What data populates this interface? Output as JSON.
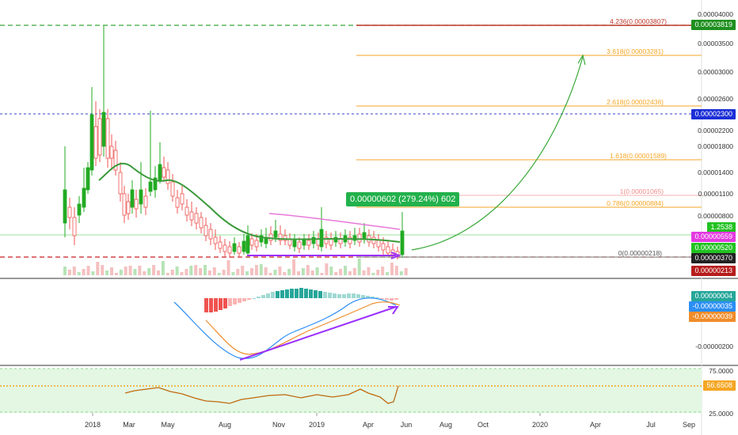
{
  "colors": {
    "up": "#22ab22",
    "down": "#ef5350",
    "fib_orange": "#f5a623",
    "fib_red": "#c0392b",
    "ma_green": "#3a9a3a",
    "ma_pink": "#e879d9",
    "macd_blue": "#2b8ff5",
    "macd_orange": "#f08c2a",
    "purple": "#9b30ff",
    "green_dash": "#36a836",
    "blue_dash": "#3344cc",
    "red_dash": "#cc2222"
  },
  "price_axis": [
    "0.00004000",
    "0.00003500",
    "0.00003000",
    "0.00002600",
    "0.00002200",
    "0.00001800",
    "0.00001400",
    "0.00001100",
    "0.00000800"
  ],
  "price_tags": [
    {
      "name": "tag-3819",
      "text": "0.00003819",
      "color": "#1e8f1e"
    },
    {
      "name": "tag-2300",
      "text": "0.00002300",
      "color": "#1c2fd6"
    },
    {
      "name": "tag-2538",
      "text": "1.2538",
      "color": "#21c221"
    },
    {
      "name": "tag-0559",
      "text": "0.00000559",
      "color": "#e33be0"
    },
    {
      "name": "tag-0520",
      "text": "0.00000520",
      "color": "#21c221"
    },
    {
      "name": "tag-0370",
      "text": "0.00000370",
      "color": "#222222"
    },
    {
      "name": "tag-0213",
      "text": "0.00000213",
      "color": "#b71c1c"
    }
  ],
  "fib_levels": [
    {
      "label": "4.236(0.00003807)",
      "color": "#c0392b"
    },
    {
      "label": "3.618(0.00003281)",
      "color": "#f5a623"
    },
    {
      "label": "2.618(0.00002436)",
      "color": "#f5a623"
    },
    {
      "label": "1.618(0.00001589)",
      "color": "#f5a623"
    },
    {
      "label": "1(0.00001065)",
      "color": "#f28b8b"
    },
    {
      "label": "0.786(0.00000884)",
      "color": "#f5a623"
    },
    {
      "label": "0(0.00000218)",
      "color": "#555555"
    }
  ],
  "callout": {
    "text": "0.00000602 (279.24%) 602"
  },
  "macd_axis": {
    "label": "-0.00000200"
  },
  "macd_tags": [
    {
      "name": "macd-hist-tag",
      "text": "0.00000004",
      "color": "#26a69a"
    },
    {
      "name": "macd-line-tag",
      "text": "-0.00000035",
      "color": "#2b8ff5"
    },
    {
      "name": "macd-signal-tag",
      "text": "-0.00000039",
      "color": "#f08c2a"
    }
  ],
  "rsi_axis": [
    "75.0000",
    "25.0000"
  ],
  "rsi_tag": {
    "text": "56.6508",
    "color": "#f5a623"
  },
  "time_axis": [
    "2018",
    "Mar",
    "May",
    "Aug",
    "Nov",
    "2019",
    "Apr",
    "Jun",
    "Aug",
    "Oct",
    "2020",
    "Apr",
    "Jul",
    "Sep"
  ]
}
